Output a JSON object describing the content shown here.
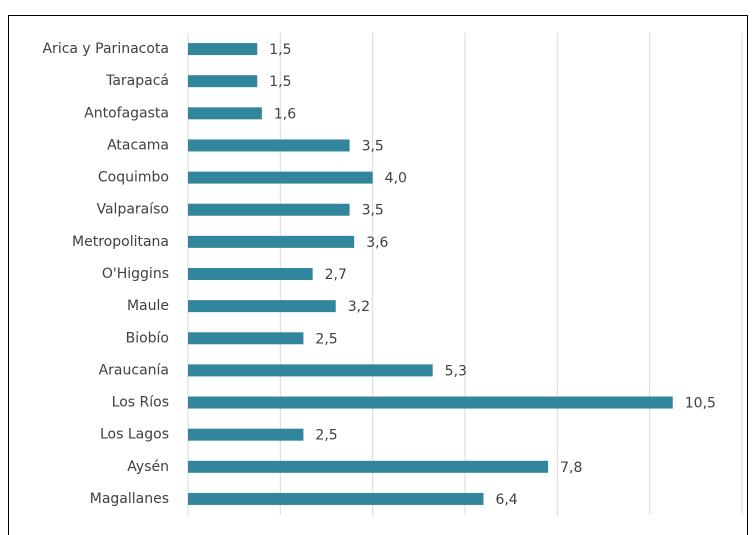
{
  "chart_data": {
    "type": "bar",
    "orientation": "horizontal",
    "categories": [
      "Arica y Parinacota",
      "Tarapacá",
      "Antofagasta",
      "Atacama",
      "Coquimbo",
      "Valparaíso",
      "Metropolitana",
      "O'Higgins",
      "Maule",
      "Biobío",
      "Araucanía",
      "Los Ríos",
      "Los Lagos",
      "Aysén",
      "Magallanes"
    ],
    "values": [
      1.5,
      1.5,
      1.6,
      3.5,
      4.0,
      3.5,
      3.6,
      2.7,
      3.2,
      2.5,
      5.3,
      10.5,
      2.5,
      7.8,
      6.4
    ],
    "value_labels": [
      "1,5",
      "1,5",
      "1,6",
      "3,5",
      "4,0",
      "3,5",
      "3,6",
      "2,7",
      "3,2",
      "2,5",
      "5,3",
      "10,5",
      "2,5",
      "7,8",
      "6,4"
    ],
    "color": "#31859c",
    "xlim": [
      0,
      12
    ],
    "xticks": [
      0,
      2,
      4,
      6,
      8,
      10,
      12
    ],
    "grid": true
  }
}
